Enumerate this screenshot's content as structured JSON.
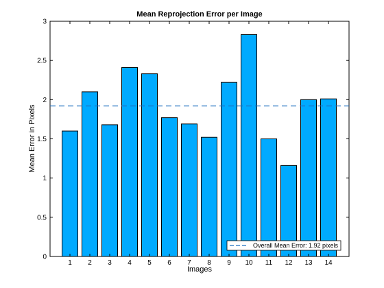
{
  "chart_data": {
    "type": "bar",
    "title": "Mean Reprojection Error per Image",
    "xlabel": "Images",
    "ylabel": "Mean Error in Pixels",
    "categories": [
      "1",
      "2",
      "3",
      "4",
      "5",
      "6",
      "7",
      "8",
      "9",
      "10",
      "11",
      "12",
      "13",
      "14"
    ],
    "values": [
      1.6,
      2.1,
      1.68,
      2.41,
      2.33,
      1.77,
      1.69,
      1.52,
      2.22,
      2.83,
      1.5,
      1.16,
      2.0,
      2.01
    ],
    "ylim": [
      0,
      3
    ],
    "yticks": [
      "0",
      "0.5",
      "1",
      "1.5",
      "2",
      "2.5",
      "3"
    ],
    "grid": false,
    "reference_line": {
      "value": 1.92,
      "style": "dashed",
      "label": "Overall Mean Error: 1.92 pixels"
    },
    "legend_position": "bottom-right",
    "colors": {
      "bar_fill": "#00aaff",
      "bar_edge": "#000000",
      "reference_line": "#1f6fbf",
      "axis": "#000000",
      "background": "#ffffff"
    }
  }
}
